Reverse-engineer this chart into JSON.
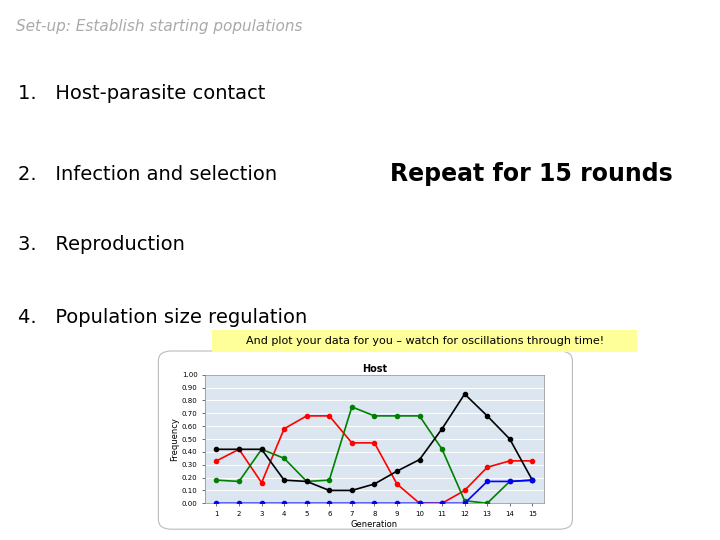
{
  "title": "Set-up: Establish starting populations",
  "items": [
    "1.   Host-parasite contact",
    "2.   Infection and selection",
    "3.   Reproduction",
    "4.   Population size regulation"
  ],
  "repeat_text": "Repeat for 15 rounds",
  "annotation_text": "And plot your data for you – watch for oscillations through time!",
  "annotation_bg": "#FFFF99",
  "chart_title": "Host",
  "xlabel": "Generation",
  "ylabel": "Frequency",
  "x": [
    1,
    2,
    3,
    4,
    5,
    6,
    7,
    8,
    9,
    10,
    11,
    12,
    13,
    14,
    15
  ],
  "red": [
    0.33,
    0.42,
    0.16,
    0.58,
    0.68,
    0.68,
    0.47,
    0.47,
    0.15,
    0.0,
    0.0,
    0.1,
    0.28,
    0.33,
    0.33
  ],
  "green": [
    0.18,
    0.17,
    0.42,
    0.35,
    0.17,
    0.18,
    0.75,
    0.68,
    0.68,
    0.68,
    0.42,
    0.02,
    0.0,
    0.17,
    0.18
  ],
  "black": [
    0.42,
    0.42,
    0.42,
    0.18,
    0.17,
    0.1,
    0.1,
    0.15,
    0.25,
    0.34,
    0.58,
    0.85,
    0.68,
    0.5,
    0.18
  ],
  "blue": [
    0.0,
    0.0,
    0.0,
    0.0,
    0.0,
    0.0,
    0.0,
    0.0,
    0.0,
    0.0,
    0.0,
    0.0,
    0.17,
    0.17,
    0.18
  ],
  "chart_bg": "#dce6f1",
  "slide_bg": "#ffffff",
  "title_color": "#aaaaaa",
  "item_color": "#000000",
  "repeat_color": "#000000",
  "ylim": [
    0.0,
    1.0
  ],
  "yticks": [
    0.0,
    0.1,
    0.2,
    0.3,
    0.4,
    0.5,
    0.6,
    0.7,
    0.8,
    0.9,
    1.0
  ],
  "title_fontsize": 11,
  "item_fontsize": 14,
  "repeat_fontsize": 17,
  "ann_fontsize": 8,
  "chart_title_fontsize": 7,
  "chart_label_fontsize": 6,
  "chart_tick_fontsize": 5
}
